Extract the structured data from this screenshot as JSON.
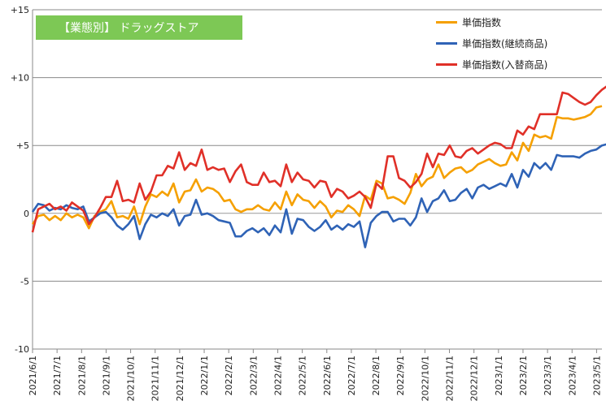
{
  "chart_data": {
    "type": "line",
    "title": "【業態別】 ドラッグストア",
    "ylim": [
      -10,
      15
    ],
    "yticks": [
      "+15",
      "+10",
      "+5",
      "0",
      "-5",
      "-10"
    ],
    "xtick_labels": [
      "2021/6/1",
      "2021/7/1",
      "2021/8/1",
      "2021/9/1",
      "2021/10/1",
      "2021/11/1",
      "2021/12/1",
      "2022/1/1",
      "2022/2/1",
      "2022/3/1",
      "2022/4/1",
      "2022/5/1",
      "2022/6/1",
      "2022/7/1",
      "2022/8/1",
      "2022/9/1",
      "2022/10/1",
      "2022/11/1",
      "2022/12/1",
      "2023/1/1",
      "2023/2/1",
      "2023/3/1",
      "2023/4/1",
      "2023/5/1"
    ],
    "grid": "horizontal",
    "legend_position": "top-right",
    "series": [
      {
        "name": "単価指数",
        "color": "#f5a000",
        "values": [
          -0.8,
          -0.2,
          -0.1,
          -0.5,
          -0.2,
          -0.5,
          0.0,
          -0.3,
          -0.1,
          -0.3,
          -1.1,
          -0.2,
          0.1,
          0.3,
          0.9,
          -0.3,
          -0.2,
          -0.4,
          0.5,
          -0.8,
          0.5,
          1.4,
          1.2,
          1.6,
          1.3,
          2.2,
          0.8,
          1.6,
          1.7,
          2.5,
          1.6,
          1.9,
          1.8,
          1.5,
          0.9,
          1.0,
          0.3,
          0.1,
          0.3,
          0.3,
          0.6,
          0.3,
          0.2,
          0.8,
          0.3,
          1.6,
          0.6,
          1.4,
          1.0,
          0.9,
          0.4,
          0.9,
          0.5,
          -0.3,
          0.2,
          0.1,
          0.6,
          0.3,
          -0.2,
          1.3,
          1.0,
          2.4,
          2.2,
          1.1,
          1.2,
          1.0,
          0.7,
          1.5,
          2.9,
          2.0,
          2.5,
          2.7,
          3.6,
          2.6,
          3.0,
          3.3,
          3.4,
          3.0,
          3.2,
          3.6,
          3.8,
          4.0,
          3.7,
          3.5,
          3.6,
          4.5,
          3.9,
          5.2,
          4.6,
          5.8,
          5.6,
          5.7,
          5.5,
          7.1,
          7.0,
          7.0,
          6.9,
          7.0,
          7.1,
          7.3,
          7.8,
          7.9
        ]
      },
      {
        "name": "単価指数(継続商品)",
        "color": "#2f63b6",
        "values": [
          0.1,
          0.7,
          0.6,
          0.2,
          0.4,
          0.3,
          0.6,
          0.4,
          0.3,
          0.5,
          -0.6,
          -0.3,
          0.0,
          0.1,
          -0.3,
          -0.9,
          -1.2,
          -0.8,
          -0.2,
          -1.9,
          -0.8,
          -0.1,
          -0.3,
          0.0,
          -0.2,
          0.3,
          -0.9,
          -0.2,
          -0.1,
          1.0,
          -0.1,
          0.0,
          -0.2,
          -0.5,
          -0.6,
          -0.7,
          -1.7,
          -1.7,
          -1.3,
          -1.1,
          -1.4,
          -1.1,
          -1.6,
          -0.9,
          -1.4,
          0.3,
          -1.5,
          -0.4,
          -0.5,
          -1.0,
          -1.3,
          -1.0,
          -0.5,
          -1.2,
          -0.9,
          -1.2,
          -0.8,
          -1.0,
          -0.6,
          -2.5,
          -0.7,
          -0.2,
          0.1,
          0.1,
          -0.6,
          -0.4,
          -0.4,
          -0.9,
          -0.3,
          1.1,
          0.1,
          0.9,
          1.1,
          1.7,
          0.9,
          1.0,
          1.5,
          1.8,
          1.1,
          1.9,
          2.1,
          1.8,
          2.0,
          2.2,
          2.0,
          2.9,
          1.9,
          3.2,
          2.7,
          3.7,
          3.3,
          3.7,
          3.2,
          4.3,
          4.2,
          4.2,
          4.2,
          4.1,
          4.4,
          4.6,
          4.7,
          5.0,
          5.1
        ]
      },
      {
        "name": "単価指数(入替商品)",
        "color": "#e03028",
        "values": [
          -1.4,
          0.3,
          0.5,
          0.7,
          0.3,
          0.5,
          0.2,
          0.8,
          0.5,
          0.2,
          -0.8,
          -0.3,
          0.4,
          1.2,
          1.2,
          2.4,
          0.9,
          1.0,
          0.8,
          2.2,
          1.0,
          1.6,
          2.8,
          2.8,
          3.5,
          3.3,
          4.5,
          3.2,
          3.7,
          3.5,
          4.7,
          3.2,
          3.4,
          3.2,
          3.3,
          2.3,
          3.1,
          3.6,
          2.3,
          2.1,
          2.1,
          3.0,
          2.3,
          2.4,
          2.0,
          3.6,
          2.3,
          3.0,
          2.5,
          2.4,
          1.9,
          2.4,
          2.3,
          1.2,
          1.8,
          1.6,
          1.1,
          1.3,
          1.6,
          1.2,
          0.4,
          2.2,
          1.8,
          4.2,
          4.2,
          2.6,
          2.4,
          1.9,
          2.3,
          2.9,
          4.4,
          3.4,
          4.4,
          4.3,
          5.0,
          4.2,
          4.1,
          4.6,
          4.8,
          4.4,
          4.7,
          5.0,
          5.2,
          5.1,
          4.8,
          4.8,
          6.1,
          5.8,
          6.4,
          6.2,
          7.3,
          7.3,
          7.3,
          7.3,
          8.9,
          8.8,
          8.5,
          8.2,
          8.0,
          8.2,
          8.7,
          9.1,
          9.4,
          9.8
        ]
      }
    ]
  }
}
